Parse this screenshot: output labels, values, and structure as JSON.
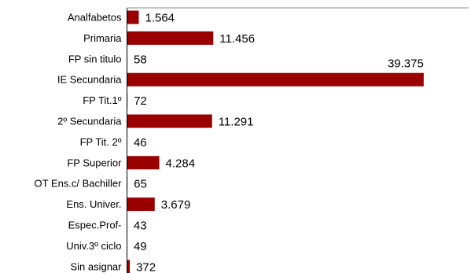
{
  "chart_data": {
    "type": "bar",
    "orientation": "horizontal",
    "categories": [
      "Analfabetos",
      "Primaria",
      "FP sin titulo",
      "IE Secundaria",
      "FP Tit.1º",
      "2º Secundaria",
      "FP Tit. 2º",
      "FP Superior",
      "OT Ens.c/ Bachiller",
      "Ens. Univer.",
      "Espec.Prof-",
      "Univ.3º ciclo",
      "Sin asignar"
    ],
    "values": [
      1564,
      11456,
      58,
      39375,
      72,
      11291,
      46,
      4284,
      65,
      3679,
      43,
      49,
      372
    ],
    "value_labels": [
      "1.564",
      "11.456",
      "58",
      "39.375",
      "72",
      "11.291",
      "46",
      "4.284",
      "65",
      "3.679",
      "43",
      "49",
      "372"
    ],
    "title": "",
    "xlabel": "",
    "ylabel": "",
    "xlim": [
      0,
      45000
    ],
    "grid": false,
    "legend": "none",
    "bar_color": "#990000"
  }
}
